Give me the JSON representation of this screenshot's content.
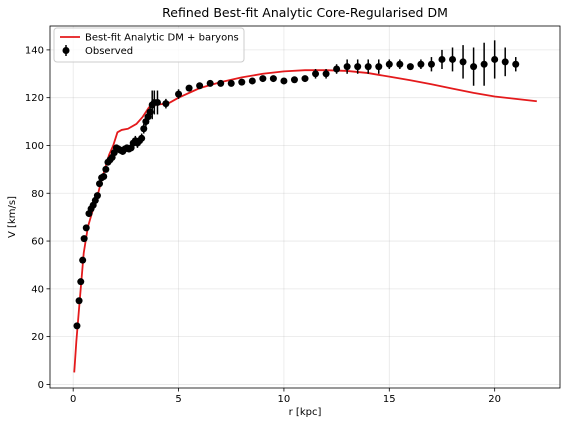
{
  "chart_data": {
    "type": "scatter",
    "title": "Refined Best-fit Analytic Core-Regularised DM",
    "xlabel": "r [kpc]",
    "ylabel": "V [km/s]",
    "xlim": [
      -1.1,
      23.1
    ],
    "ylim": [
      -1.5,
      150
    ],
    "grid": true,
    "legend_position": "top-left",
    "x_ticks": [
      0,
      5,
      10,
      15,
      20
    ],
    "y_ticks": [
      0,
      20,
      40,
      60,
      80,
      100,
      120,
      140
    ],
    "colors": {
      "model": "#e41a1c",
      "observed": "#000000"
    },
    "series": [
      {
        "name": "Best-fit Analytic DM + baryons",
        "kind": "line",
        "x": [
          0.05,
          0.15,
          0.3,
          0.5,
          0.7,
          0.9,
          1.1,
          1.3,
          1.5,
          1.7,
          1.9,
          2.1,
          2.3,
          2.6,
          3.0,
          3.3,
          3.6,
          3.9,
          4.2,
          4.6,
          5.0,
          6.0,
          7.0,
          8.0,
          9.0,
          10.0,
          11.0,
          12.0,
          13.0,
          14.0,
          15.0,
          16.0,
          17.0,
          18.0,
          19.0,
          20.0,
          21.0,
          22.0
        ],
        "y": [
          5,
          18,
          34,
          55,
          66,
          72,
          77,
          84,
          90,
          96,
          100,
          105.5,
          106.5,
          107,
          109,
          112,
          116,
          117,
          117.3,
          118,
          120,
          124,
          126.5,
          128.5,
          130,
          131,
          131.5,
          131.5,
          131.2,
          130.3,
          128.8,
          127.3,
          125.6,
          123.8,
          122,
          120.5,
          119.5,
          118.5
        ]
      },
      {
        "name": "Observed",
        "kind": "errorbar",
        "x": [
          0.18,
          0.28,
          0.36,
          0.45,
          0.52,
          0.62,
          0.75,
          0.85,
          0.95,
          1.05,
          1.15,
          1.25,
          1.35,
          1.45,
          1.55,
          1.65,
          1.75,
          1.85,
          1.95,
          2.05,
          2.15,
          2.25,
          2.35,
          2.45,
          2.55,
          2.65,
          2.75,
          2.85,
          2.95,
          3.05,
          3.15,
          3.25,
          3.35,
          3.45,
          3.55,
          3.65,
          3.75,
          3.85,
          4.0,
          4.4,
          5.0,
          5.5,
          6.0,
          6.5,
          7.0,
          7.5,
          8.0,
          8.5,
          9.0,
          9.5,
          10.0,
          10.5,
          11.0,
          11.5,
          12.0,
          12.5,
          13.0,
          13.5,
          14.0,
          14.5,
          15.0,
          15.5,
          16.0,
          16.5,
          17.0,
          17.5,
          18.0,
          18.5,
          19.0,
          19.5,
          20.0,
          20.5,
          21.0
        ],
        "y": [
          24.5,
          35,
          43,
          52,
          61,
          65.5,
          71.5,
          73.5,
          75,
          77,
          79,
          84,
          86.5,
          87,
          90,
          93,
          94,
          95,
          97,
          99,
          98.5,
          98,
          97.5,
          98.5,
          99,
          98.5,
          99,
          101,
          102,
          101,
          102,
          103,
          107,
          110,
          112,
          114,
          117,
          118,
          118,
          117.5,
          121.5,
          124,
          125,
          126,
          126,
          126,
          126.5,
          127,
          128,
          128,
          127,
          127.5,
          128,
          130,
          130,
          132,
          133,
          133,
          133,
          133,
          134,
          134,
          133,
          134,
          134,
          136,
          136,
          135,
          133,
          134,
          136,
          135,
          134
        ],
        "yerr": [
          1,
          1,
          1,
          1,
          1,
          1,
          1,
          1,
          1,
          1,
          1,
          1,
          1,
          1,
          1,
          1,
          1,
          1,
          1,
          1,
          1,
          1,
          1,
          1,
          1,
          1,
          1,
          2,
          2,
          2,
          2,
          2,
          2,
          2,
          3,
          3,
          6,
          5,
          5,
          2,
          2,
          1,
          1,
          1,
          1,
          1,
          1,
          1,
          1,
          1,
          1,
          1,
          1,
          2,
          2,
          2,
          3,
          3,
          3,
          3,
          2,
          2,
          1,
          2,
          3,
          4,
          5,
          7,
          8,
          9,
          8,
          6,
          3
        ]
      }
    ]
  }
}
